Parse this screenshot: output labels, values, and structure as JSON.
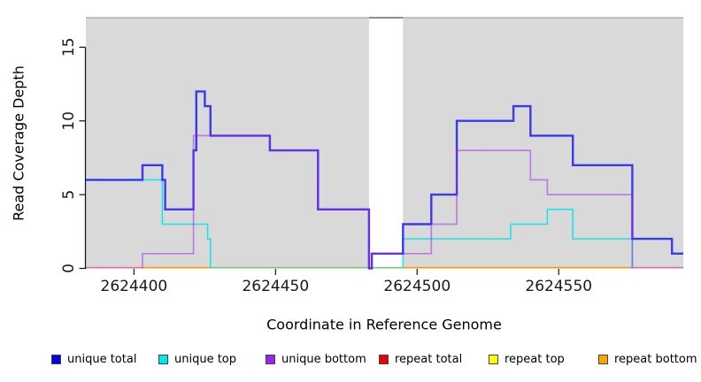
{
  "chart_data": {
    "type": "step-line read-coverage plot",
    "xlabel": "Coordinate in Reference Genome",
    "ylabel": "Read Coverage Depth",
    "xlim": [
      2624383,
      2624594
    ],
    "ylim": [
      0,
      17
    ],
    "x_ticks": [
      2624400,
      2624450,
      2624500,
      2624550
    ],
    "y_ticks": [
      0,
      5,
      10,
      15
    ],
    "grid": false,
    "panel_bg": "#d9d9d9",
    "panel_top_border": "#b0b0b0",
    "gap_band": {
      "x1": 2624483,
      "x2": 2624495,
      "fill": "#ffffff",
      "top_border": "#8c8c8c"
    },
    "series": [
      {
        "name": "unique total",
        "color": "#2222f0",
        "width": 2.4,
        "opacity": 0.88,
        "z": 2,
        "draw": true,
        "steps": [
          [
            2624383,
            6
          ],
          [
            2624403,
            7
          ],
          [
            2624410,
            6
          ],
          [
            2624411,
            4
          ],
          [
            2624421,
            8
          ],
          [
            2624422,
            12
          ],
          [
            2624425,
            11
          ],
          [
            2624427,
            9
          ],
          [
            2624448,
            8
          ],
          [
            2624465,
            4
          ],
          [
            2624483,
            0
          ],
          [
            2624484,
            1
          ],
          [
            2624495,
            3
          ],
          [
            2624505,
            5
          ],
          [
            2624514,
            10
          ],
          [
            2624534,
            11
          ],
          [
            2624540,
            9
          ],
          [
            2624555,
            7
          ],
          [
            2624576,
            2
          ],
          [
            2624590,
            1
          ]
        ],
        "x_end": 2624594
      },
      {
        "name": "unique top",
        "color": "#00e4ee",
        "width": 1.5,
        "opacity": 0.9,
        "z": 1,
        "draw": true,
        "steps": [
          [
            2624383,
            6
          ],
          [
            2624410,
            3
          ],
          [
            2624426,
            2
          ],
          [
            2624427,
            null
          ],
          [
            2624495,
            2
          ],
          [
            2624533,
            3
          ],
          [
            2624546,
            4
          ],
          [
            2624555,
            2
          ],
          [
            2624576,
            null
          ]
        ],
        "x_end": 2624594,
        "note": "null = coverage 0, baseline drawn as blended baseline segment"
      },
      {
        "name": "unique bottom",
        "color": "#a020f0",
        "width": 1.7,
        "opacity": 0.5,
        "z": 3,
        "draw": true,
        "steps": [
          [
            2624383,
            null
          ],
          [
            2624403,
            1
          ],
          [
            2624421,
            9
          ],
          [
            2624448,
            8
          ],
          [
            2624465,
            4
          ],
          [
            2624483,
            0
          ],
          [
            2624484,
            1
          ],
          [
            2624505,
            3
          ],
          [
            2624514,
            8
          ],
          [
            2624540,
            6
          ],
          [
            2624546,
            5
          ],
          [
            2624576,
            null
          ]
        ],
        "x_end": 2624594
      },
      {
        "name": "repeat total",
        "color": "#ee0000",
        "width": 1.5,
        "opacity": 1,
        "z": 0,
        "draw": false,
        "steps": [
          [
            2624383,
            0
          ]
        ],
        "x_end": 2624594,
        "note": "coverage 0 across window; visible blended with unique-bottom as pink baseline ends"
      },
      {
        "name": "repeat top",
        "color": "#ffff00",
        "width": 1.5,
        "opacity": 1,
        "z": 0,
        "draw": false,
        "steps": [
          [
            2624383,
            0
          ]
        ],
        "x_end": 2624594,
        "note": "coverage 0 across window; blends with unique-top zero line as green baseline"
      },
      {
        "name": "repeat bottom",
        "color": "#ffa500",
        "width": 1.5,
        "opacity": 1,
        "z": 0,
        "draw": false,
        "steps": [
          [
            2624403,
            0
          ]
        ],
        "x_end": 2624575,
        "note": "coverage 0; visible as orange baseline segments"
      }
    ],
    "baseline_segments": [
      {
        "x1": 2624383,
        "x2": 2624403,
        "color": "#df6ea6"
      },
      {
        "x1": 2624403,
        "x2": 2624427,
        "color": "#ff9800"
      },
      {
        "x1": 2624427,
        "x2": 2624495,
        "color": "#6cc97e"
      },
      {
        "x1": 2624495,
        "x2": 2624575,
        "color": "#ff9800"
      },
      {
        "x1": 2624575,
        "x2": 2624594,
        "color": "#df6ea6"
      }
    ],
    "legend": [
      {
        "label": "unique total",
        "color": "#0202e8"
      },
      {
        "label": "unique top",
        "color": "#00e8ee"
      },
      {
        "label": "unique bottom",
        "color": "#a020f0"
      },
      {
        "label": "repeat total",
        "color": "#ee0000"
      },
      {
        "label": "repeat top",
        "color": "#ffff00"
      },
      {
        "label": "repeat bottom",
        "color": "#ffa500"
      }
    ]
  }
}
